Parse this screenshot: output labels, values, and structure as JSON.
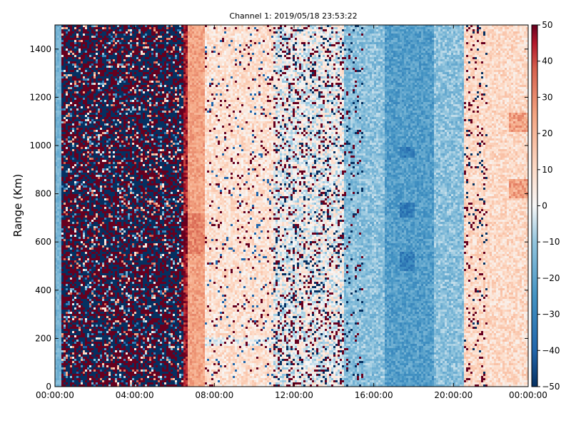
{
  "chart_data": {
    "type": "heatmap",
    "title": "Channel 1: 2019/05/18 23:53:22",
    "ylabel": "Range (Km)",
    "xlabel": "",
    "x_ticks": [
      "00:00:00",
      "04:00:00",
      "08:00:00",
      "12:00:00",
      "16:00:00",
      "20:00:00",
      "00:00:00"
    ],
    "x_range_hours": [
      0,
      23.75
    ],
    "y_ticks": [
      0,
      200,
      400,
      600,
      800,
      1000,
      1200,
      1400
    ],
    "ylim": [
      0,
      1500
    ],
    "colorbar": {
      "range": [
        -50,
        50
      ],
      "ticks": [
        -50,
        -40,
        -30,
        -20,
        -10,
        0,
        10,
        20,
        30,
        40,
        50
      ],
      "colormap": "RdBu_r",
      "low_color": "#053061",
      "mid_color": "#f7f7f7",
      "high_color": "#67001f"
    },
    "regions": [
      {
        "hours": [
          0.0,
          0.3
        ],
        "pattern": "light-blue",
        "mean_value": -15
      },
      {
        "hours": [
          0.3,
          6.5
        ],
        "pattern": "saturated-noise",
        "mean_value": 0
      },
      {
        "hours": [
          6.5,
          7.5
        ],
        "pattern": "strong-positive-band",
        "mean_value": 25
      },
      {
        "hours": [
          7.5,
          11.0
        ],
        "pattern": "light-red",
        "mean_value": 8
      },
      {
        "hours": [
          11.0,
          14.5
        ],
        "pattern": "near-zero-speckled",
        "mean_value": 0
      },
      {
        "hours": [
          14.5,
          20.5
        ],
        "pattern": "light-blue-sparse-noise",
        "mean_value": -12
      },
      {
        "hours": [
          20.5,
          23.75
        ],
        "pattern": "light-red-sparse-noise",
        "mean_value": 10
      }
    ]
  }
}
